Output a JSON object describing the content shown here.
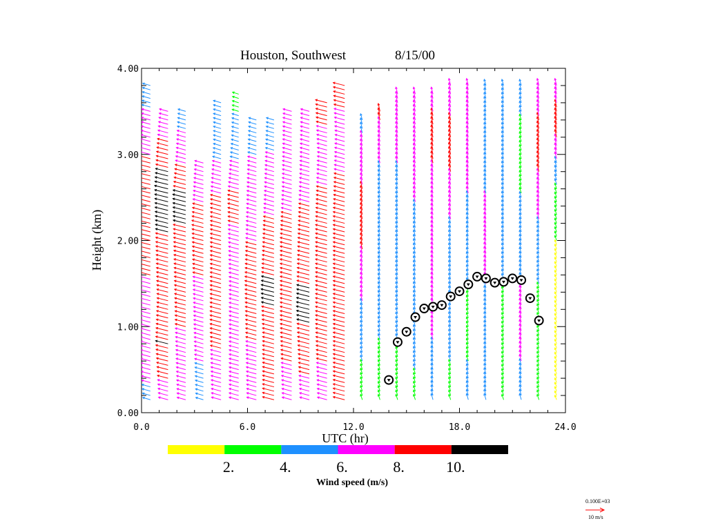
{
  "chart_data": {
    "type": "wind-profiler",
    "title": "Houston, Southwest",
    "date": "8/15/00",
    "xlabel": "UTC (hr)",
    "ylabel": "Height (km)",
    "xlim": [
      0,
      24
    ],
    "ylim": [
      0,
      4
    ],
    "x_ticks": [
      "0.0",
      "6.0",
      "12.0",
      "18.0",
      "24.0"
    ],
    "x_tick_values": [
      0,
      6,
      12,
      18,
      24
    ],
    "y_ticks": [
      "0.00",
      "1.00",
      "2.00",
      "3.00",
      "4.00"
    ],
    "y_tick_values": [
      0,
      1,
      2,
      3,
      4
    ],
    "colorbar": {
      "label": "Wind speed (m/s)",
      "colors": [
        "#ffff00",
        "#00ff00",
        "#1e90ff",
        "#ff00ff",
        "#ff0000",
        "#000000"
      ],
      "bounds": [
        0,
        2,
        4,
        6,
        8,
        10,
        12
      ],
      "tick_labels": [
        "2.",
        "4.",
        "6.",
        "8.",
        "10."
      ],
      "tick_values": [
        2,
        4,
        6,
        8,
        10
      ]
    },
    "reference_vector": {
      "value_label": "0.100E+03",
      "unit_label": "10 m/s",
      "color": "#ff0000"
    },
    "boundary_layer_height": {
      "utc": [
        14.0,
        14.5,
        15.0,
        15.5,
        16.0,
        16.5,
        17.0,
        17.5,
        18.0,
        18.5,
        19.0,
        19.5,
        20.0,
        20.5,
        21.0,
        21.5,
        22.0,
        22.5
      ],
      "km": [
        0.38,
        0.82,
        0.94,
        1.11,
        1.21,
        1.23,
        1.25,
        1.35,
        1.41,
        1.49,
        1.58,
        1.56,
        1.51,
        1.52,
        1.56,
        1.54,
        1.33,
        1.07
      ]
    },
    "profiles": [
      {
        "utc": 0.5,
        "top": 3.8,
        "speeds": [
          [
            0.15,
            5
          ],
          [
            0.5,
            7
          ],
          [
            2.7,
            9
          ],
          [
            3.2,
            7
          ],
          [
            3.8,
            5
          ]
        ]
      },
      {
        "utc": 1.5,
        "top": 3.5,
        "speeds": [
          [
            0.15,
            7
          ],
          [
            0.8,
            10
          ],
          [
            1.3,
            8.5
          ],
          [
            2.6,
            11
          ],
          [
            3.0,
            9
          ],
          [
            3.5,
            6
          ]
        ]
      },
      {
        "utc": 2.5,
        "top": 3.5,
        "speeds": [
          [
            0.15,
            6
          ],
          [
            1.0,
            8
          ],
          [
            2.5,
            10.5
          ],
          [
            3.0,
            7
          ],
          [
            3.5,
            5
          ]
        ]
      },
      {
        "utc": 3.5,
        "top": 2.9,
        "speeds": [
          [
            0.15,
            5
          ],
          [
            1.0,
            7
          ],
          [
            2.2,
            9
          ],
          [
            2.9,
            6
          ]
        ]
      },
      {
        "utc": 4.5,
        "top": 3.6,
        "speeds": [
          [
            0.15,
            7
          ],
          [
            1.0,
            8.5
          ],
          [
            2.5,
            8
          ],
          [
            3.1,
            5
          ],
          [
            3.6,
            5
          ]
        ]
      },
      {
        "utc": 5.5,
        "top": 3.7,
        "speeds": [
          [
            0.15,
            7
          ],
          [
            1.5,
            7
          ],
          [
            2.5,
            8.5
          ],
          [
            3.2,
            4.5
          ],
          [
            3.7,
            3.5
          ]
        ]
      },
      {
        "utc": 6.5,
        "top": 3.4,
        "speeds": [
          [
            0.15,
            7
          ],
          [
            1.5,
            9
          ],
          [
            2.5,
            7
          ],
          [
            3.4,
            5
          ]
        ]
      },
      {
        "utc": 7.5,
        "top": 3.4,
        "speeds": [
          [
            0.15,
            9
          ],
          [
            0.9,
            9
          ],
          [
            1.4,
            10.5
          ],
          [
            1.9,
            9
          ],
          [
            2.6,
            7
          ],
          [
            3.4,
            5
          ]
        ]
      },
      {
        "utc": 8.5,
        "top": 3.5,
        "speeds": [
          [
            0.15,
            7
          ],
          [
            1.0,
            9
          ],
          [
            2.0,
            9
          ],
          [
            2.6,
            7
          ],
          [
            3.5,
            6
          ]
        ]
      },
      {
        "utc": 9.5,
        "top": 3.5,
        "speeds": [
          [
            0.15,
            7
          ],
          [
            1.2,
            10.5
          ],
          [
            2.0,
            9
          ],
          [
            2.8,
            7
          ],
          [
            3.5,
            6
          ]
        ]
      },
      {
        "utc": 10.5,
        "top": 3.6,
        "speeds": [
          [
            0.15,
            7
          ],
          [
            1.0,
            9
          ],
          [
            2.2,
            9
          ],
          [
            3.0,
            7
          ],
          [
            3.6,
            9
          ]
        ]
      },
      {
        "utc": 11.5,
        "top": 3.8,
        "speeds": [
          [
            0.15,
            9
          ],
          [
            2.3,
            9
          ],
          [
            3.2,
            7
          ],
          [
            3.8,
            9
          ]
        ]
      },
      {
        "utc": 12.5,
        "top": 3.4,
        "speeds": [
          [
            0.15,
            3
          ],
          [
            1.0,
            5
          ],
          [
            2.2,
            9
          ],
          [
            3.0,
            7
          ],
          [
            3.4,
            5
          ]
        ]
      },
      {
        "utc": 13.5,
        "top": 3.5,
        "speeds": [
          [
            0.15,
            3
          ],
          [
            1.5,
            5
          ],
          [
            2.5,
            5
          ],
          [
            3.2,
            7
          ],
          [
            3.5,
            9
          ]
        ]
      },
      {
        "utc": 14.5,
        "top": 3.7,
        "speeds": [
          [
            0.15,
            3
          ],
          [
            1.5,
            5
          ],
          [
            2.5,
            5
          ],
          [
            3.2,
            7
          ],
          [
            3.7,
            7
          ]
        ]
      },
      {
        "utc": 15.5,
        "top": 3.7,
        "speeds": [
          [
            0.15,
            3
          ],
          [
            0.8,
            5
          ],
          [
            2.0,
            5
          ],
          [
            2.8,
            7
          ],
          [
            3.7,
            7
          ]
        ]
      },
      {
        "utc": 16.5,
        "top": 3.7,
        "speeds": [
          [
            0.15,
            5
          ],
          [
            1.5,
            7
          ],
          [
            2.5,
            7
          ],
          [
            3.2,
            9
          ],
          [
            3.7,
            7
          ]
        ]
      },
      {
        "utc": 17.5,
        "top": 3.8,
        "speeds": [
          [
            0.15,
            3
          ],
          [
            1.0,
            5
          ],
          [
            2.0,
            5
          ],
          [
            3.0,
            9
          ],
          [
            3.8,
            7
          ]
        ]
      },
      {
        "utc": 18.5,
        "top": 3.8,
        "speeds": [
          [
            0.15,
            5
          ],
          [
            1.0,
            3
          ],
          [
            2.0,
            5
          ],
          [
            3.0,
            7
          ],
          [
            3.8,
            7
          ]
        ]
      },
      {
        "utc": 19.5,
        "top": 3.8,
        "speeds": [
          [
            0.15,
            5
          ],
          [
            1.0,
            5
          ],
          [
            2.0,
            7
          ],
          [
            3.0,
            5
          ],
          [
            3.8,
            5
          ]
        ]
      },
      {
        "utc": 20.5,
        "top": 3.8,
        "speeds": [
          [
            0.15,
            3
          ],
          [
            1.0,
            3
          ],
          [
            2.0,
            5
          ],
          [
            3.0,
            5
          ],
          [
            3.8,
            5
          ]
        ]
      },
      {
        "utc": 21.5,
        "top": 3.8,
        "speeds": [
          [
            0.15,
            5
          ],
          [
            1.0,
            7
          ],
          [
            2.0,
            5
          ],
          [
            3.0,
            3
          ],
          [
            3.8,
            5
          ]
        ]
      },
      {
        "utc": 22.5,
        "top": 3.8,
        "speeds": [
          [
            0.15,
            3
          ],
          [
            1.0,
            3
          ],
          [
            2.0,
            5
          ],
          [
            3.0,
            9
          ],
          [
            3.8,
            7
          ]
        ]
      },
      {
        "utc": 23.5,
        "top": 3.8,
        "speeds": [
          [
            0.15,
            1
          ],
          [
            1.5,
            1
          ],
          [
            2.5,
            3
          ],
          [
            3.3,
            9
          ],
          [
            3.8,
            7
          ]
        ]
      }
    ]
  }
}
